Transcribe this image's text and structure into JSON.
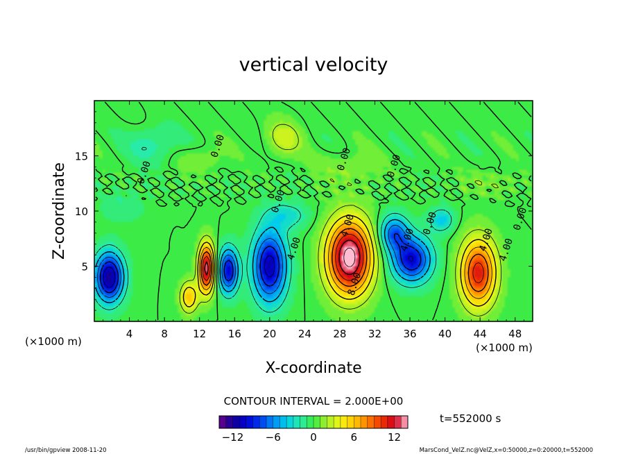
{
  "chart_data": {
    "type": "heatmap",
    "title": "vertical velocity",
    "xlabel": "X-coordinate",
    "ylabel": "Z-coordinate",
    "x_unit": "(×1000 m)",
    "y_unit": "(×1000 m)",
    "xlim": [
      0,
      50
    ],
    "ylim": [
      0,
      20
    ],
    "x_ticks": [
      4,
      8,
      12,
      16,
      20,
      24,
      28,
      32,
      36,
      40,
      44,
      48
    ],
    "y_ticks": [
      5,
      10,
      15
    ],
    "contour_interval_text": "CONTOUR INTERVAL = 2.000E+00",
    "contour_labels": [
      {
        "text": "0.00",
        "x": 6.0,
        "z": 13.4
      },
      {
        "text": "0.00",
        "x": 14.4,
        "z": 15.8
      },
      {
        "text": "0.00",
        "x": 21.3,
        "z": 10.8
      },
      {
        "text": "4.00",
        "x": 23.1,
        "z": 6.5
      },
      {
        "text": "0.00",
        "x": 28.8,
        "z": 14.6
      },
      {
        "text": "4.00",
        "x": 29.2,
        "z": 8.6
      },
      {
        "text": "8.00",
        "x": 30.0,
        "z": 3.3
      },
      {
        "text": "0.00",
        "x": 34.5,
        "z": 14.0
      },
      {
        "text": "4.00",
        "x": 36.0,
        "z": 7.3
      },
      {
        "text": "0.00",
        "x": 38.6,
        "z": 8.8
      },
      {
        "text": "4.00",
        "x": 45.0,
        "z": 7.3
      },
      {
        "text": "4.00",
        "x": 47.3,
        "z": 6.4
      },
      {
        "text": "0.00",
        "x": 48.9,
        "z": 9.2
      }
    ],
    "cells": [
      {
        "x": 1.7,
        "z": 4.0,
        "sx": 1.6,
        "sz": 2.2,
        "w": -12
      },
      {
        "x": 6.5,
        "z": 16.0,
        "sx": 2.6,
        "sz": 1.6,
        "w": -2.2
      },
      {
        "x": 10.8,
        "z": 2.2,
        "sx": 1.0,
        "sz": 1.4,
        "w": 6
      },
      {
        "x": 12.8,
        "z": 4.8,
        "sx": 0.9,
        "sz": 2.2,
        "w": 13
      },
      {
        "x": 15.3,
        "z": 4.6,
        "sx": 1.1,
        "sz": 2.0,
        "w": -10
      },
      {
        "x": 20.0,
        "z": 5.0,
        "sx": 1.9,
        "sz": 3.2,
        "w": -11
      },
      {
        "x": 22.0,
        "z": 9.6,
        "sx": 2.4,
        "sz": 1.2,
        "w": -3
      },
      {
        "x": 29.1,
        "z": 5.8,
        "sx": 2.5,
        "sz": 3.3,
        "w": 15
      },
      {
        "x": 36.2,
        "z": 5.6,
        "sx": 2.2,
        "sz": 2.0,
        "w": -10
      },
      {
        "x": 34.2,
        "z": 8.0,
        "sx": 1.6,
        "sz": 1.6,
        "w": -7
      },
      {
        "x": 39.6,
        "z": 9.2,
        "sx": 1.4,
        "sz": 1.1,
        "w": -4
      },
      {
        "x": 43.8,
        "z": 4.4,
        "sx": 2.0,
        "sz": 3.0,
        "w": 11
      },
      {
        "x": 21.6,
        "z": 16.6,
        "sx": 2.0,
        "sz": 1.6,
        "w": 3
      },
      {
        "x": 28.8,
        "z": 13.8,
        "sx": 3.5,
        "sz": 1.5,
        "w": 1.5
      },
      {
        "x": 12.3,
        "z": 14.6,
        "sx": 2.2,
        "sz": 1.2,
        "w": 1.6
      },
      {
        "x": 45.0,
        "z": 12.6,
        "sx": 3.0,
        "sz": 1.2,
        "w": 1.3
      },
      {
        "x": 3.2,
        "z": 10.4,
        "sx": 2.5,
        "sz": 1.4,
        "w": -1.4
      }
    ],
    "colorbar": {
      "min": -14,
      "max": 14,
      "ticks": [
        -12,
        -6,
        0,
        6,
        12
      ],
      "tick_labels": [
        "−12",
        "−6",
        "0",
        "6",
        "12"
      ]
    },
    "time_label": "t=552000 s",
    "footer_left": "/usr/bin/gpview  2008-11-20",
    "footer_right": "MarsCond_VelZ.nc@VelZ,x=0:50000,z=0:20000,t=552000"
  }
}
